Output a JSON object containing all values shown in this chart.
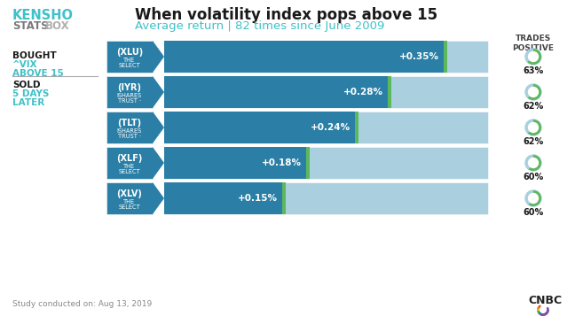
{
  "title_main": "When volatility index pops above 15",
  "title_sub": "Average return | 82 times since June 2009",
  "study_text": "Study conducted on: Aug 13, 2019",
  "trades_positive_label": "TRADES\nPOSITIVE",
  "etfs": [
    "(XLU)",
    "(IYR)",
    "(TLT)",
    "(XLF)",
    "(XLV)"
  ],
  "subtitles": [
    "THE\nSELECT",
    "ISHARES\nTRUST ·",
    "ISHARES\nTRUST ·",
    "THE\nSELECT",
    "THE\nSELECT"
  ],
  "values": [
    0.35,
    0.28,
    0.24,
    0.18,
    0.15
  ],
  "value_labels": [
    "+0.35%",
    "+0.28%",
    "+0.24%",
    "+0.18%",
    "+0.15%"
  ],
  "trades_positive": [
    63,
    62,
    62,
    60,
    60
  ],
  "max_value": 0.4,
  "bar_dark": "#2b7fa6",
  "bar_light": "#aacfdf",
  "bar_green": "#5cb85c",
  "kensho_cyan": "#3fc1c9",
  "stats_gray": "#7a7a7a",
  "box_gray": "#b0b0b0",
  "title_dark": "#1a1a1a",
  "bought_dark": "#1a1a1a",
  "sold_cyan": "#3fc1c9",
  "footer_gray": "#888888",
  "bg": "#ffffff",
  "circle_light": "#aacfdf"
}
